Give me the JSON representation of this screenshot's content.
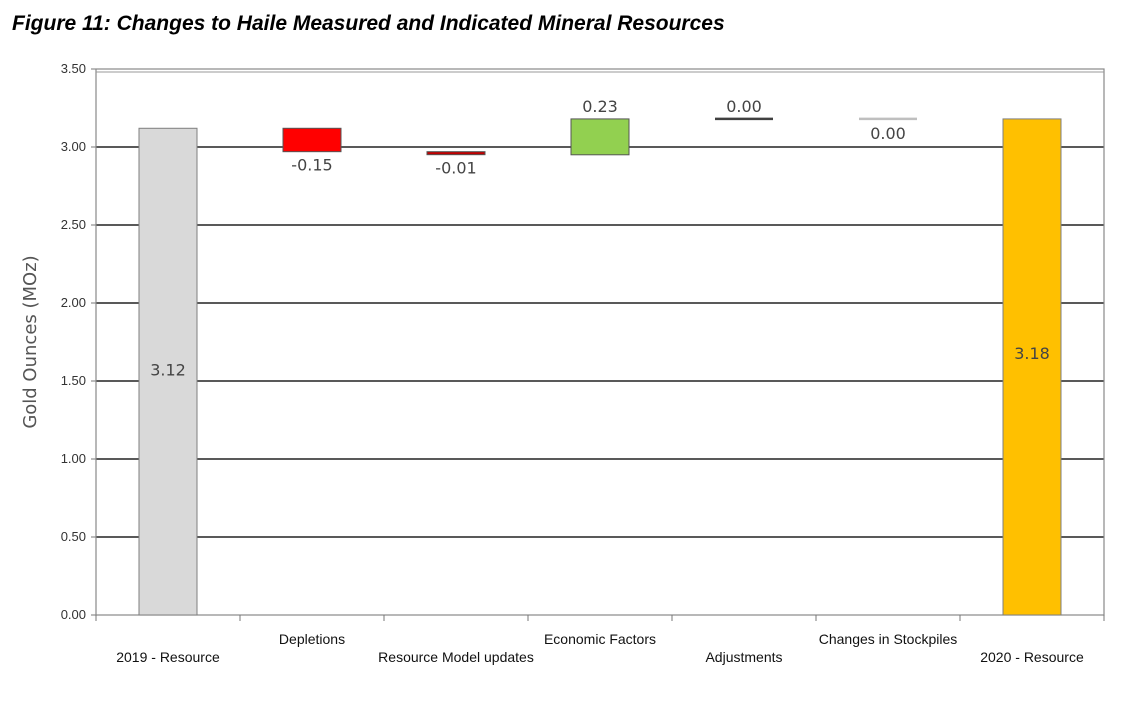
{
  "chart_data": {
    "type": "waterfall",
    "title": "Figure 11: Changes to Haile Measured and Indicated Mineral Resources",
    "xlabel": "",
    "ylabel": "Gold Ounces (MOz)",
    "ylim": [
      0,
      3.5
    ],
    "grid": true,
    "yticks": [
      "0.00",
      "0.50",
      "1.00",
      "1.50",
      "2.00",
      "2.50",
      "3.00",
      "3.50"
    ],
    "categories": [
      "2019 - Resource",
      "Depletions",
      "Resource Model updates",
      "Economic Factors",
      "Adjustments",
      "Changes in Stockpiles",
      "2020 - Resource"
    ],
    "bars": [
      {
        "label": "2019 - Resource",
        "kind": "total",
        "start": 0,
        "value": 3.12,
        "text": "3.12",
        "color": "#d9d9d9"
      },
      {
        "label": "Depletions",
        "kind": "delta",
        "start": 3.12,
        "value": -0.15,
        "text": "-0.15",
        "color": "#ff0000"
      },
      {
        "label": "Resource Model updates",
        "kind": "delta",
        "start": 2.97,
        "value": -0.01,
        "text": "-0.01",
        "color": "#c00000"
      },
      {
        "label": "Economic Factors",
        "kind": "delta",
        "start": 2.95,
        "value": 0.23,
        "text": "0.23",
        "color": "#92d050"
      },
      {
        "label": "Adjustments",
        "kind": "delta",
        "start": 3.18,
        "value": 0.0,
        "text": "0.00",
        "color": "#404040"
      },
      {
        "label": "Changes in Stockpiles",
        "kind": "delta",
        "start": 3.18,
        "value": 0.0,
        "text": "0.00",
        "color": "#bfbfbf"
      },
      {
        "label": "2020 - Resource",
        "kind": "total",
        "start": 0,
        "value": 3.18,
        "text": "3.18",
        "color": "#ffc000"
      }
    ]
  }
}
